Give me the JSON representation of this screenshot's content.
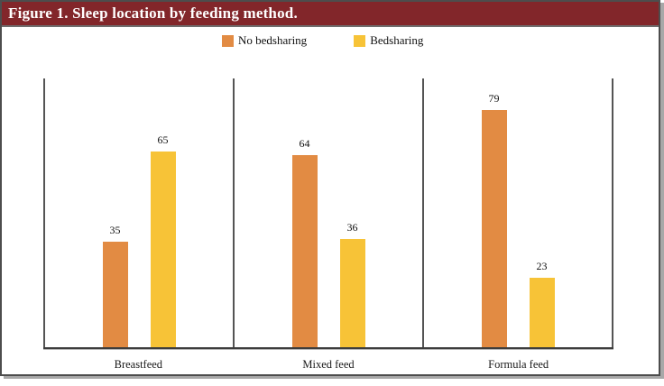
{
  "figure": {
    "title": "Figure 1. Sleep location by feeding method."
  },
  "colors": {
    "header_bg": "#82262a",
    "header_text": "#ffffff",
    "no_bedsharing": "#e28b43",
    "bedsharing": "#f7c337",
    "axis_line": "#545454"
  },
  "chart_data": {
    "type": "bar",
    "categories": [
      "Breastfeed",
      "Mixed feed",
      "Formula feed"
    ],
    "series": [
      {
        "name": "No bedsharing",
        "color": "#e28b43",
        "values": [
          35,
          64,
          79
        ]
      },
      {
        "name": "Bedsharing",
        "color": "#f7c337",
        "values": [
          65,
          36,
          23
        ]
      }
    ],
    "ylim": [
      0,
      90
    ],
    "ylabel": "",
    "xlabel": "",
    "grid": false,
    "value_labels": true,
    "legend_position": "top"
  }
}
